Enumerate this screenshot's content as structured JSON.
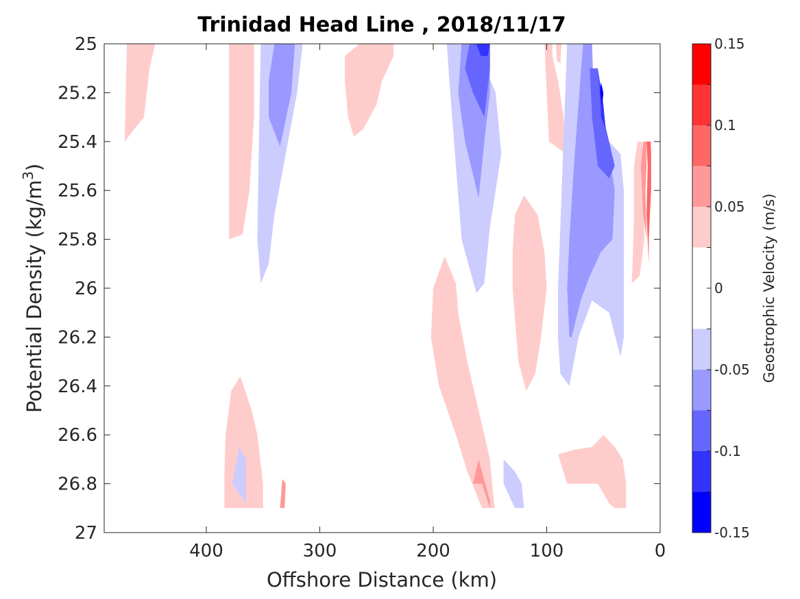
{
  "chart_data": {
    "type": "contour",
    "title": "Trinidad Head Line , 2018/11/17",
    "xlabel": "Offshore Distance (km)",
    "ylabel": "Potential Density (kg/m",
    "ylabel_sup": "3",
    "ylabel_close": ")",
    "x_reversed": true,
    "y_reversed": true,
    "xlim": [
      0,
      490
    ],
    "ylim": [
      25,
      27
    ],
    "xticks": [
      400,
      300,
      200,
      100,
      0
    ],
    "yticks": [
      "25",
      "25.2",
      "25.4",
      "25.6",
      "25.8",
      "26",
      "26.2",
      "26.4",
      "26.6",
      "26.8",
      "27"
    ],
    "colorbar": {
      "label": "Geostrophic Velocity (m/s)",
      "range": [
        -0.15,
        0.15
      ],
      "levels": 12,
      "tick_labels": [
        {
          "value": 0.15,
          "text": "0.15"
        },
        {
          "value": 0.1,
          "text": "0.1"
        },
        {
          "value": 0.05,
          "text": "0.05"
        },
        {
          "value": 0,
          "text": "0"
        },
        {
          "value": -0.05,
          "text": "-0.05"
        },
        {
          "value": -0.1,
          "text": "-0.1"
        },
        {
          "value": -0.15,
          "text": "-0.15"
        }
      ],
      "colors_top_to_bottom": [
        "#ff0000",
        "#ff3333",
        "#ff6666",
        "#ff9999",
        "#ffcccc",
        "#ffffff",
        "#ffffff",
        "#ccccff",
        "#9999ff",
        "#6666ff",
        "#3333ff",
        "#0000ff"
      ]
    },
    "regions": [
      {
        "level": 1,
        "points": [
          [
            470,
            25
          ],
          [
            445,
            25
          ],
          [
            450,
            25.1
          ],
          [
            455,
            25.3
          ],
          [
            472,
            25.4
          ]
        ]
      },
      {
        "level": 1,
        "points": [
          [
            380,
            25
          ],
          [
            358,
            25
          ],
          [
            358,
            25.3
          ],
          [
            362,
            25.6
          ],
          [
            368,
            25.78
          ],
          [
            380,
            25.8
          ]
        ]
      },
      {
        "level": 1,
        "points": [
          [
            265,
            25
          ],
          [
            235,
            25
          ],
          [
            235,
            25.05
          ],
          [
            245,
            25.15
          ],
          [
            250,
            25.25
          ],
          [
            262,
            25.35
          ],
          [
            270,
            25.38
          ],
          [
            275,
            25.3
          ],
          [
            278,
            25.15
          ],
          [
            278,
            25.05
          ]
        ]
      },
      {
        "level": 1,
        "points": [
          [
            92,
            25
          ],
          [
            87,
            25
          ],
          [
            88,
            25.08
          ],
          [
            91,
            25.07
          ]
        ]
      },
      {
        "level": 1,
        "points": [
          [
            102,
            25
          ],
          [
            95,
            25
          ],
          [
            95,
            25.05
          ],
          [
            90,
            25.15
          ],
          [
            85,
            25.3
          ],
          [
            83,
            25.45
          ],
          [
            98,
            25.4
          ],
          [
            100,
            25.2
          ]
        ]
      },
      {
        "level": 1,
        "points": [
          [
            120,
            25.62
          ],
          [
            108,
            25.7
          ],
          [
            102,
            25.85
          ],
          [
            100,
            26.0
          ],
          [
            105,
            26.2
          ],
          [
            110,
            26.35
          ],
          [
            118,
            26.42
          ],
          [
            125,
            26.3
          ],
          [
            130,
            26.0
          ],
          [
            130,
            25.85
          ],
          [
            128,
            25.7
          ]
        ]
      },
      {
        "level": 1,
        "points": [
          [
            190,
            25.87
          ],
          [
            200,
            26.0
          ],
          [
            202,
            26.2
          ],
          [
            195,
            26.4
          ],
          [
            180,
            26.6
          ],
          [
            170,
            26.75
          ],
          [
            157,
            26.9
          ],
          [
            146,
            26.9
          ],
          [
            150,
            26.7
          ],
          [
            155,
            26.6
          ],
          [
            160,
            26.5
          ],
          [
            170,
            26.3
          ],
          [
            178,
            26.1
          ],
          [
            180,
            25.98
          ]
        ]
      },
      {
        "level": 1,
        "points": [
          [
            370,
            26.9
          ],
          [
            350,
            26.9
          ],
          [
            350,
            26.8
          ],
          [
            355,
            26.6
          ],
          [
            360,
            26.5
          ],
          [
            370,
            26.36
          ],
          [
            378,
            26.42
          ],
          [
            383,
            26.6
          ],
          [
            384,
            26.75
          ],
          [
            384,
            26.9
          ]
        ]
      },
      {
        "level": 1,
        "points": [
          [
            90,
            26.68
          ],
          [
            82,
            26.8
          ],
          [
            55,
            26.8
          ],
          [
            45,
            26.88
          ],
          [
            40,
            26.9
          ],
          [
            30,
            26.9
          ],
          [
            30,
            26.8
          ],
          [
            33,
            26.7
          ],
          [
            40,
            26.65
          ],
          [
            50,
            26.6
          ],
          [
            60,
            26.65
          ],
          [
            75,
            26.66
          ]
        ]
      },
      {
        "level": 1,
        "points": [
          [
            20,
            25.4
          ],
          [
            23,
            25.5
          ],
          [
            23,
            25.7
          ],
          [
            24,
            25.85
          ],
          [
            25,
            25.98
          ],
          [
            18,
            25.95
          ],
          [
            14,
            25.8
          ],
          [
            14,
            25.6
          ],
          [
            16,
            25.4
          ]
        ]
      },
      {
        "level": 2,
        "points": [
          [
            165,
            26.8
          ],
          [
            157,
            26.8
          ],
          [
            150,
            26.9
          ],
          [
            150,
            26.87
          ],
          [
            160,
            26.7
          ]
        ]
      },
      {
        "level": 2,
        "points": [
          [
            335,
            26.9
          ],
          [
            331,
            26.9
          ],
          [
            330,
            26.8
          ],
          [
            333,
            26.78
          ]
        ]
      },
      {
        "level": 2,
        "points": [
          [
            15,
            25.4
          ],
          [
            17,
            25.5
          ],
          [
            15,
            25.7
          ],
          [
            12,
            25.8
          ],
          [
            13,
            25.6
          ],
          [
            12,
            25.5
          ],
          [
            12,
            25.4
          ]
        ]
      },
      {
        "level": 3,
        "points": [
          [
            12,
            25.4
          ],
          [
            9,
            25.3
          ],
          [
            8,
            25.45
          ],
          [
            8,
            25.6
          ],
          [
            10,
            25.8
          ],
          [
            10,
            25.9
          ],
          [
            12,
            25.7
          ],
          [
            11,
            25.5
          ]
        ]
      },
      {
        "level": -1,
        "points": [
          [
            352,
            25
          ],
          [
            315,
            25
          ],
          [
            320,
            25.2
          ],
          [
            330,
            25.45
          ],
          [
            340,
            25.7
          ],
          [
            345,
            25.9
          ],
          [
            352,
            25.98
          ],
          [
            355,
            25.8
          ],
          [
            354,
            25.5
          ]
        ]
      },
      {
        "level": -1,
        "points": [
          [
            188,
            25
          ],
          [
            163,
            25
          ],
          [
            145,
            25.2
          ],
          [
            140,
            25.45
          ],
          [
            150,
            25.75
          ],
          [
            155,
            25.98
          ],
          [
            162,
            26.02
          ],
          [
            175,
            25.8
          ],
          [
            180,
            25.5
          ],
          [
            185,
            25.2
          ]
        ]
      },
      {
        "level": -1,
        "points": [
          [
            82,
            25.0
          ],
          [
            68,
            25.0
          ],
          [
            60,
            25.3
          ],
          [
            45,
            25.4
          ],
          [
            35,
            25.45
          ],
          [
            32,
            25.6
          ],
          [
            32,
            26.0
          ],
          [
            32,
            26.2
          ],
          [
            35,
            26.28
          ],
          [
            45,
            26.1
          ],
          [
            60,
            26.05
          ],
          [
            72,
            26.2
          ],
          [
            80,
            26.4
          ],
          [
            88,
            26.35
          ],
          [
            90,
            26.2
          ],
          [
            90,
            26.0
          ]
        ]
      },
      {
        "level": -1,
        "points": [
          [
            377,
            26.8
          ],
          [
            365,
            26.88
          ],
          [
            365,
            26.7
          ],
          [
            371,
            26.65
          ]
        ]
      },
      {
        "level": -1,
        "points": [
          [
            128,
            26.9
          ],
          [
            120,
            26.9
          ],
          [
            122,
            26.8
          ],
          [
            128,
            26.75
          ],
          [
            138,
            26.7
          ],
          [
            138,
            26.8
          ]
        ]
      },
      {
        "level": -2,
        "points": [
          [
            340,
            25.0
          ],
          [
            322,
            25.0
          ],
          [
            325,
            25.2
          ],
          [
            335,
            25.42
          ],
          [
            345,
            25.3
          ],
          [
            345,
            25.15
          ]
        ]
      },
      {
        "level": -2,
        "points": [
          [
            175,
            25
          ],
          [
            150,
            25
          ],
          [
            150,
            25.2
          ],
          [
            155,
            25.4
          ],
          [
            160,
            25.63
          ],
          [
            172,
            25.4
          ],
          [
            178,
            25.2
          ]
        ]
      },
      {
        "level": -2,
        "points": [
          [
            68,
            25.0
          ],
          [
            60,
            25.0
          ],
          [
            58,
            25.3
          ],
          [
            45,
            25.45
          ],
          [
            40,
            25.6
          ],
          [
            42,
            25.8
          ],
          [
            52,
            25.85
          ],
          [
            62,
            25.95
          ],
          [
            70,
            26.05
          ],
          [
            78,
            26.2
          ],
          [
            80,
            26.2
          ],
          [
            82,
            26.0
          ],
          [
            80,
            25.8
          ],
          [
            76,
            25.5
          ]
        ]
      },
      {
        "level": -3,
        "points": [
          [
            168,
            25
          ],
          [
            150,
            25
          ],
          [
            150,
            25.1
          ],
          [
            155,
            25.3
          ],
          [
            165,
            25.2
          ],
          [
            172,
            25.1
          ]
        ]
      },
      {
        "level": -3,
        "points": [
          [
            62,
            25.1
          ],
          [
            55,
            25.1
          ],
          [
            50,
            25.3
          ],
          [
            40,
            25.5
          ],
          [
            45,
            25.55
          ],
          [
            55,
            25.5
          ],
          [
            60,
            25.3
          ]
        ]
      },
      {
        "level": -4,
        "points": [
          [
            162,
            25
          ],
          [
            150,
            25
          ],
          [
            152,
            25.05
          ],
          [
            158,
            25.05
          ]
        ]
      },
      {
        "level": -4,
        "points": [
          [
            55,
            25.1
          ],
          [
            50,
            25.25
          ],
          [
            48,
            25.35
          ],
          [
            52,
            25.3
          ],
          [
            53,
            25.2
          ]
        ]
      },
      {
        "level": -5,
        "points": [
          [
            52,
            25.15
          ],
          [
            50,
            25.2
          ],
          [
            51,
            25.25
          ],
          [
            53,
            25.2
          ]
        ]
      }
    ],
    "masks": [
      {
        "points": [
          [
            60,
            25
          ],
          [
            0,
            25
          ],
          [
            0,
            25.4
          ],
          [
            40,
            25.4
          ],
          [
            50,
            25.2
          ]
        ]
      },
      {
        "points": [
          [
            490,
            26.9
          ],
          [
            0,
            26.9
          ],
          [
            0,
            27
          ],
          [
            490,
            27
          ]
        ]
      }
    ]
  }
}
